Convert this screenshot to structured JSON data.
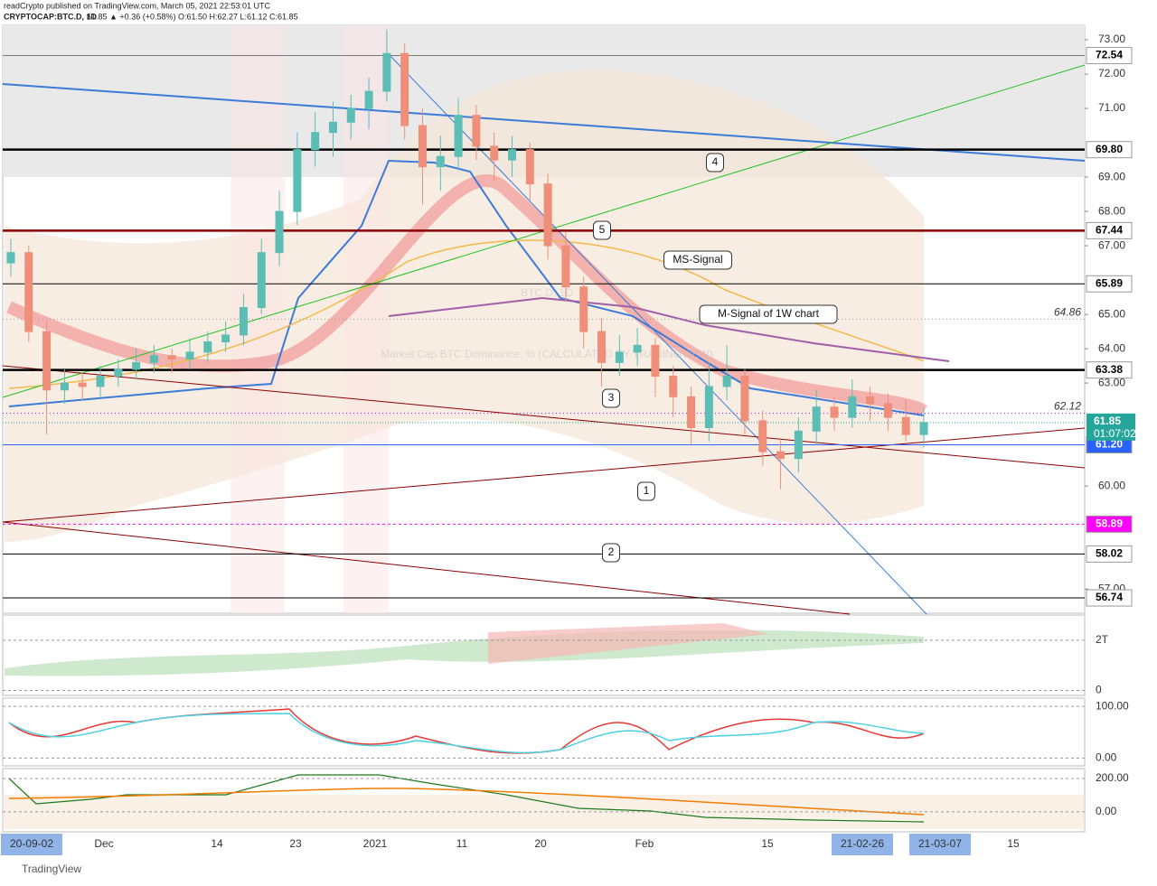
{
  "header": {
    "publisher": "readCrypto published on TradingView.com, March 05, 2021 22:53:01 UTC",
    "symbol": "CRYPTOCAP:BTC.D, 1D",
    "quote": "61.85 ▲ +0.36 (+0.58%) O:61.50 H:62.27 L:61.12 C:61.85"
  },
  "footer": "TradingView",
  "chart_data": {
    "type": "candlestick",
    "watermark": "BTC.D, 1D",
    "subtitle": "Market Cap BTC Dominance, % (CALCULATED BY TRADINGVIEW)",
    "up_color": "#5cbdb5",
    "down_color": "#ef8f7a",
    "ylim": [
      56.32,
      73.37
    ],
    "yticks": [
      {
        "value": 57,
        "label": "57.00"
      },
      {
        "value": 60,
        "label": "60.00"
      },
      {
        "value": 63,
        "label": "63.00"
      },
      {
        "value": 64,
        "label": "64.00"
      },
      {
        "value": 65,
        "label": "65.00"
      },
      {
        "value": 67,
        "label": "67.00"
      },
      {
        "value": 68,
        "label": "68.00"
      },
      {
        "value": 69,
        "label": "69.00"
      },
      {
        "value": 71,
        "label": "71.00"
      },
      {
        "value": 72,
        "label": "72.00"
      },
      {
        "value": 73,
        "label": "73.00"
      }
    ],
    "levels": [
      {
        "value": 72.54,
        "label": "72.54",
        "color": "#777777",
        "label_bg": "#ffffff",
        "label_fg": "#000000"
      },
      {
        "value": 69.8,
        "label": "69.80",
        "color": "#000000",
        "label_bg": "#ffffff",
        "label_fg": "#000000"
      },
      {
        "value": 67.44,
        "label": "67.44",
        "color": "#8b0000",
        "label_bg": "#ffffff",
        "label_fg": "#000000"
      },
      {
        "value": 65.89,
        "label": "65.89",
        "color": "#000000",
        "label_bg": "#ffffff",
        "label_fg": "#000000"
      },
      {
        "value": 63.38,
        "label": "63.38",
        "color": "#000000",
        "label_bg": "#ffffff",
        "label_fg": "#000000"
      },
      {
        "value": 61.2,
        "label": "61.20",
        "color": "#2962ff",
        "label_bg": "#2962ff",
        "label_fg": "#ffffff"
      },
      {
        "value": 58.89,
        "label": "58.89",
        "color": "#ff00ff",
        "label_bg": "#ff00ff",
        "label_fg": "#ffffff"
      },
      {
        "value": 58.02,
        "label": "58.02",
        "color": "#000000",
        "label_bg": "#ffffff",
        "label_fg": "#000000"
      },
      {
        "value": 56.74,
        "label": "56.74",
        "color": "#000000",
        "label_bg": "#ffffff",
        "label_fg": "#000000"
      }
    ],
    "last_price": {
      "value": 61.85,
      "label": "61.85",
      "countdown": "01:07:02",
      "color": "#26a69a"
    },
    "dotted_levels": [
      {
        "value": 64.86,
        "label": "64.86",
        "color": "#999999"
      },
      {
        "value": 62.12,
        "label": "62.12",
        "color": "#d000d0"
      }
    ],
    "annotations": [
      "1",
      "2",
      "3",
      "4",
      "5",
      "MS-Signal",
      "M-Signal of 1W chart"
    ],
    "categories": [
      "20-09-02",
      "Dec",
      "14",
      "23",
      "2021",
      "11",
      "20",
      "Feb",
      "15",
      "21-02-26",
      "21-03-07",
      "15"
    ],
    "candles": [
      [
        66.5,
        67.2,
        66.1,
        66.8
      ],
      [
        66.8,
        67.0,
        64.2,
        64.5
      ],
      [
        64.5,
        64.8,
        61.5,
        62.8
      ],
      [
        62.8,
        63.4,
        62.4,
        63.0
      ],
      [
        63.0,
        63.3,
        62.5,
        62.9
      ],
      [
        62.9,
        63.5,
        62.6,
        63.2
      ],
      [
        63.2,
        63.7,
        62.9,
        63.4
      ],
      [
        63.4,
        64.0,
        63.1,
        63.6
      ],
      [
        63.6,
        64.1,
        63.3,
        63.8
      ],
      [
        63.8,
        64.0,
        63.3,
        63.7
      ],
      [
        63.7,
        64.3,
        63.4,
        63.9
      ],
      [
        63.9,
        64.5,
        63.6,
        64.2
      ],
      [
        64.2,
        64.8,
        63.9,
        64.4
      ],
      [
        64.4,
        65.6,
        64.1,
        65.2
      ],
      [
        65.2,
        67.2,
        65.0,
        66.8
      ],
      [
        66.8,
        68.6,
        66.4,
        68.0
      ],
      [
        68.0,
        70.3,
        67.6,
        69.8
      ],
      [
        69.8,
        70.9,
        69.3,
        70.3
      ],
      [
        70.3,
        71.2,
        69.6,
        70.6
      ],
      [
        70.6,
        71.4,
        70.1,
        71.0
      ],
      [
        71.0,
        71.9,
        70.4,
        71.5
      ],
      [
        71.5,
        73.3,
        71.2,
        72.6
      ],
      [
        72.6,
        72.9,
        70.1,
        70.5
      ],
      [
        70.5,
        71.0,
        68.2,
        69.3
      ],
      [
        69.3,
        70.2,
        68.6,
        69.6
      ],
      [
        69.6,
        71.3,
        69.2,
        70.8
      ],
      [
        70.8,
        71.1,
        69.5,
        69.9
      ],
      [
        69.9,
        70.3,
        68.9,
        69.5
      ],
      [
        69.5,
        70.2,
        69.0,
        69.8
      ],
      [
        69.8,
        70.0,
        68.3,
        68.8
      ],
      [
        68.8,
        69.1,
        66.6,
        67.0
      ],
      [
        67.0,
        67.4,
        65.4,
        65.8
      ],
      [
        65.8,
        66.1,
        64.0,
        64.5
      ],
      [
        64.5,
        64.9,
        62.9,
        63.6
      ],
      [
        63.6,
        64.4,
        63.2,
        63.9
      ],
      [
        63.9,
        64.6,
        63.5,
        64.1
      ],
      [
        64.1,
        64.3,
        62.6,
        63.2
      ],
      [
        63.2,
        63.5,
        62.0,
        62.6
      ],
      [
        62.6,
        62.9,
        61.2,
        61.7
      ],
      [
        61.7,
        63.6,
        61.3,
        62.9
      ],
      [
        62.9,
        64.1,
        62.5,
        63.2
      ],
      [
        63.2,
        63.4,
        61.5,
        61.9
      ],
      [
        61.9,
        62.2,
        60.6,
        61.0
      ],
      [
        61.0,
        61.4,
        59.9,
        60.8
      ],
      [
        60.8,
        62.0,
        60.4,
        61.6
      ],
      [
        61.6,
        62.8,
        61.2,
        62.3
      ],
      [
        62.3,
        62.6,
        61.6,
        62.0
      ],
      [
        62.0,
        63.1,
        61.7,
        62.6
      ],
      [
        62.6,
        62.9,
        61.9,
        62.4
      ],
      [
        62.4,
        62.7,
        61.6,
        62.0
      ],
      [
        62.0,
        62.5,
        61.3,
        61.5
      ],
      [
        61.5,
        62.27,
        61.12,
        61.85
      ]
    ],
    "panes": [
      {
        "ylim": [
          -0.2,
          3.0
        ],
        "yticks": [
          {
            "value": 2,
            "label": "2T"
          },
          0
        ]
      },
      {
        "ylim": [
          -15,
          116
        ],
        "yticks": [
          {
            "value": 100,
            "label": "100.00"
          },
          {
            "value": 0,
            "label": "0.00"
          }
        ]
      },
      {
        "ylim": [
          -120,
          260
        ],
        "yticks": [
          {
            "value": 200,
            "label": "200.00"
          },
          {
            "value": 0,
            "label": "0.00"
          }
        ]
      }
    ]
  }
}
